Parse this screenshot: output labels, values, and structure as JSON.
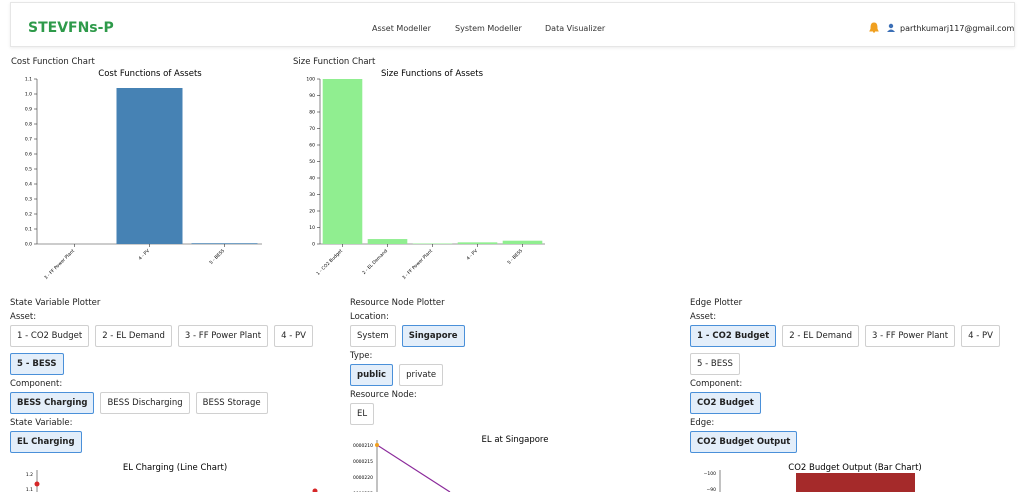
{
  "nav": {
    "logo": "STEVFNs-P",
    "links": [
      "Asset Modeller",
      "System Modeller",
      "Data Visualizer"
    ],
    "user": "parthkumarj117@gmail.com"
  },
  "cost_chart": {
    "heading": "Cost Function Chart",
    "chart_data": {
      "type": "bar",
      "title": "Cost Functions of Assets",
      "categories": [
        "3 - FF Power Plant",
        "4 - PV",
        "5 - BESS"
      ],
      "values": [
        0,
        1.04,
        0.005
      ],
      "color": "#4682b4",
      "ylim": [
        0,
        1.1
      ],
      "yticks": [
        {
          "value": 0,
          "label": "0.0"
        },
        0.1,
        0.2,
        0.3,
        0.4,
        0.5,
        0.6,
        0.7,
        0.8,
        0.9,
        {
          "value": 1,
          "label": "1.0"
        },
        1.1
      ]
    }
  },
  "size_chart": {
    "heading": "Size Function Chart",
    "chart_data": {
      "type": "bar",
      "title": "Size Functions of Assets",
      "categories": [
        "1 - CO2 Budget",
        "2 - EL Demand",
        "3 - FF Power Plant",
        "4 - PV",
        "5 - BESS"
      ],
      "values": [
        100,
        3,
        0.3,
        1,
        2
      ],
      "color": "#90ee90",
      "ylim": [
        0,
        100
      ],
      "yticks": [
        0,
        10,
        20,
        30,
        40,
        50,
        60,
        70,
        80,
        90,
        100
      ]
    }
  },
  "state_plotter": {
    "title": "State Variable Plotter",
    "groups": [
      {
        "label": "Asset:",
        "options": [
          "1 - CO2 Budget",
          "2 - EL Demand",
          "3 - FF Power Plant",
          "4 - PV",
          "5 - BESS"
        ],
        "selected": 4
      },
      {
        "label": "Component:",
        "options": [
          "BESS Charging",
          "BESS Discharging",
          "BESS Storage"
        ],
        "selected": 0
      },
      {
        "label": "State Variable:",
        "options": [
          "EL Charging"
        ],
        "selected": 0
      }
    ],
    "chart_title": "EL Charging (Line Chart)",
    "tick_labels": [
      "1.2",
      "1.1"
    ]
  },
  "resource_plotter": {
    "title": "Resource Node Plotter",
    "groups": [
      {
        "label": "Location:",
        "options": [
          "System",
          "Singapore"
        ],
        "selected": 1
      },
      {
        "label": "Type:",
        "options": [
          "public",
          "private"
        ],
        "selected": 0
      },
      {
        "label": "Resource Node:",
        "options": [
          "EL"
        ],
        "selected": null
      }
    ],
    "chart_title": "EL at Singapore",
    "tick_labels": [
      "0000210",
      "0000215",
      "0000220",
      "0000225"
    ]
  },
  "edge_plotter": {
    "title": "Edge Plotter",
    "groups": [
      {
        "label": "Asset:",
        "options": [
          "1 - CO2 Budget",
          "2 - EL Demand",
          "3 - FF Power Plant",
          "4 - PV",
          "5 - BESS"
        ],
        "selected": 0
      },
      {
        "label": "Component:",
        "options": [
          "CO2 Budget"
        ],
        "selected": 0
      },
      {
        "label": "Edge:",
        "options": [
          "CO2 Budget Output"
        ],
        "selected": 0
      }
    ],
    "chart_title": "CO2 Budget Output (Bar Chart)",
    "tick_labels": [
      "−100",
      "−90"
    ]
  }
}
